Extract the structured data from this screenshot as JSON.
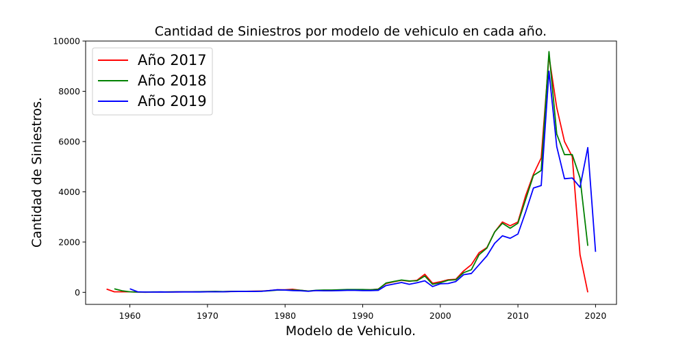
{
  "chart_data": {
    "type": "line",
    "title": "Cantidad de Siniestros por modelo de vehiculo en cada año.",
    "xlabel": "Modelo de Vehiculo.",
    "ylabel": "Cantidad de Siniestros.",
    "xlim": [
      1954.3,
      2022.7
    ],
    "ylim": [
      -480,
      10000
    ],
    "xticks": [
      1960,
      1970,
      1980,
      1990,
      2000,
      2010,
      2020
    ],
    "yticks": [
      0,
      2000,
      4000,
      6000,
      8000,
      10000
    ],
    "grid": false,
    "legend_position": "top-left",
    "series": [
      {
        "name": "Año 2017",
        "color": "#ff0000",
        "x": [
          1957,
          1958,
          1959,
          1960,
          1961,
          1962,
          1963,
          1964,
          1965,
          1966,
          1967,
          1968,
          1969,
          1970,
          1971,
          1972,
          1973,
          1974,
          1975,
          1976,
          1977,
          1978,
          1979,
          1980,
          1981,
          1982,
          1983,
          1984,
          1985,
          1986,
          1987,
          1988,
          1989,
          1990,
          1991,
          1992,
          1993,
          1994,
          1995,
          1996,
          1997,
          1998,
          1999,
          2000,
          2001,
          2002,
          2003,
          2004,
          2005,
          2006,
          2007,
          2008,
          2009,
          2010,
          2011,
          2012,
          2013,
          2014,
          2015,
          2016,
          2017,
          2018,
          2019
        ],
        "y": [
          130,
          20,
          20,
          20,
          10,
          5,
          10,
          10,
          15,
          15,
          20,
          20,
          25,
          30,
          30,
          25,
          35,
          40,
          40,
          45,
          50,
          70,
          100,
          100,
          120,
          80,
          50,
          70,
          80,
          80,
          90,
          100,
          100,
          100,
          100,
          130,
          350,
          420,
          480,
          440,
          480,
          720,
          360,
          420,
          500,
          520,
          850,
          1100,
          1580,
          1780,
          2400,
          2800,
          2650,
          2800,
          3850,
          4700,
          5350,
          9400,
          7350,
          6000,
          5400,
          1500,
          0
        ]
      },
      {
        "name": "Año 2018",
        "color": "#008000",
        "x": [
          1958,
          1959,
          1960,
          1961,
          1962,
          1963,
          1964,
          1965,
          1966,
          1967,
          1968,
          1969,
          1970,
          1971,
          1972,
          1973,
          1974,
          1975,
          1976,
          1977,
          1978,
          1979,
          1980,
          1981,
          1982,
          1983,
          1984,
          1985,
          1986,
          1987,
          1988,
          1989,
          1990,
          1991,
          1992,
          1993,
          1994,
          1995,
          1996,
          1997,
          1998,
          1999,
          2000,
          2001,
          2002,
          2003,
          2004,
          2005,
          2006,
          2007,
          2008,
          2009,
          2010,
          2011,
          2012,
          2013,
          2014,
          2015,
          2016,
          2017,
          2018,
          2019
        ],
        "y": [
          140,
          60,
          20,
          10,
          10,
          15,
          15,
          15,
          20,
          20,
          20,
          25,
          30,
          35,
          30,
          35,
          40,
          40,
          40,
          45,
          60,
          90,
          90,
          90,
          80,
          50,
          80,
          90,
          90,
          100,
          110,
          110,
          110,
          100,
          120,
          370,
          430,
          490,
          450,
          460,
          650,
          320,
          380,
          480,
          500,
          780,
          900,
          1500,
          1760,
          2400,
          2750,
          2550,
          2750,
          3700,
          4650,
          4850,
          9580,
          6300,
          5480,
          5480,
          4550,
          1850
        ]
      },
      {
        "name": "Año 2019",
        "color": "#0000ff",
        "x": [
          1960,
          1961,
          1962,
          1963,
          1964,
          1965,
          1966,
          1967,
          1968,
          1969,
          1970,
          1971,
          1972,
          1973,
          1974,
          1975,
          1976,
          1977,
          1978,
          1979,
          1980,
          1981,
          1982,
          1983,
          1984,
          1985,
          1986,
          1987,
          1988,
          1989,
          1990,
          1991,
          1992,
          1993,
          1994,
          1995,
          1996,
          1997,
          1998,
          1999,
          2000,
          2001,
          2002,
          2003,
          2004,
          2005,
          2006,
          2007,
          2008,
          2009,
          2010,
          2011,
          2012,
          2013,
          2014,
          2015,
          2016,
          2017,
          2018,
          2019,
          2020
        ],
        "y": [
          140,
          20,
          10,
          10,
          15,
          10,
          15,
          15,
          15,
          15,
          20,
          20,
          20,
          30,
          35,
          35,
          35,
          40,
          70,
          100,
          90,
          70,
          60,
          40,
          70,
          60,
          60,
          70,
          80,
          80,
          70,
          70,
          80,
          270,
          330,
          390,
          320,
          380,
          460,
          230,
          340,
          350,
          430,
          700,
          750,
          1100,
          1450,
          1950,
          2250,
          2150,
          2320,
          3200,
          4150,
          4250,
          8800,
          5800,
          4520,
          4550,
          4180,
          5760,
          1610
        ]
      }
    ]
  }
}
